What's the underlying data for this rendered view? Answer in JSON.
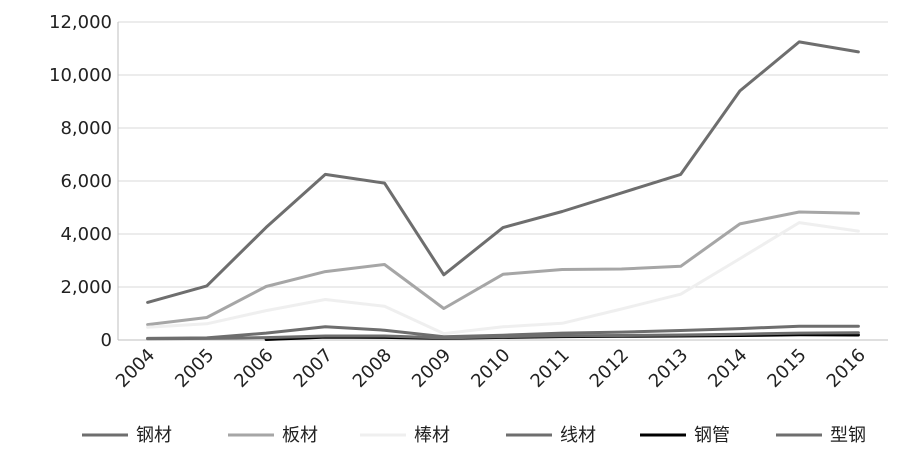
{
  "chart_data": {
    "type": "line",
    "title": "",
    "xlabel": "",
    "ylabel": "",
    "categories": [
      "2004",
      "2005",
      "2006",
      "2007",
      "2008",
      "2009",
      "2010",
      "2011",
      "2012",
      "2013",
      "2014",
      "2015",
      "2016"
    ],
    "ylim": [
      0,
      12000
    ],
    "yticks": [
      0,
      2000,
      4000,
      6000,
      8000,
      10000,
      12000
    ],
    "ytick_labels": [
      "0",
      "2,000",
      "4,000",
      "6,000",
      "8,000",
      "10,000",
      "12,000"
    ],
    "grid": "horizontal",
    "legend_position": "bottom",
    "series": [
      {
        "name": "钢材",
        "color": "#6e6e6e",
        "values": [
          1420,
          2040,
          4250,
          6250,
          5920,
          2460,
          4240,
          4850,
          5550,
          6250,
          9400,
          11250,
          10870
        ]
      },
      {
        "name": "板材",
        "color": "#a6a6a6",
        "values": [
          580,
          850,
          2020,
          2580,
          2850,
          1190,
          2480,
          2660,
          2680,
          2780,
          4380,
          4830,
          4780
        ]
      },
      {
        "name": "棒材",
        "color": "#efefef",
        "values": [
          480,
          610,
          1110,
          1530,
          1270,
          240,
          500,
          630,
          1170,
          1730,
          3070,
          4430,
          4110
        ]
      },
      {
        "name": "线材",
        "color": "#6e6e6e",
        "values": [
          60,
          80,
          260,
          500,
          370,
          120,
          180,
          260,
          300,
          360,
          430,
          520,
          520
        ]
      },
      {
        "name": "钢管",
        "color": "#000000",
        "values": [
          null,
          null,
          20,
          110,
          100,
          60,
          100,
          130,
          140,
          150,
          170,
          200,
          190
        ]
      },
      {
        "name": "型钢",
        "color": "#6e6e6e",
        "values": [
          50,
          60,
          90,
          150,
          150,
          80,
          130,
          160,
          170,
          190,
          220,
          260,
          270
        ]
      }
    ]
  }
}
